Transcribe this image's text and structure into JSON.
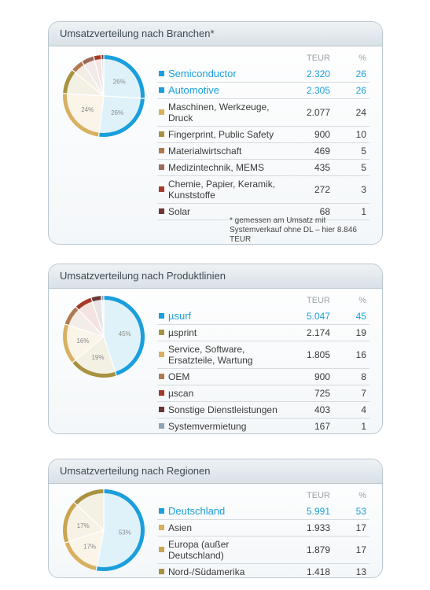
{
  "labels": {
    "col_teur": "TEUR",
    "col_pct": "%"
  },
  "chart_data": [
    {
      "type": "pie",
      "title": "Umsatzverteilung nach Branchen*",
      "note": "* gemessen am Umsatz mit Systemverkauf ohne DL – hier 8.846 TEUR",
      "slices": [
        {
          "label": "Semiconductor",
          "teur": "2.320",
          "pct": 26,
          "color": "#1b9fdc",
          "highlight": true
        },
        {
          "label": "Automotive",
          "teur": "2.305",
          "pct": 26,
          "color": "#1b9fdc",
          "highlight": true
        },
        {
          "label": "Maschinen, Werkzeuge, Druck",
          "teur": "2.077",
          "pct": 24,
          "color": "#d8b060",
          "highlight": false
        },
        {
          "label": "Fingerprint, Public Safety",
          "teur": "900",
          "pct": 10,
          "color": "#a89240",
          "highlight": false
        },
        {
          "label": "Materialwirtschaft",
          "teur": "469",
          "pct": 5,
          "color": "#b17a4e",
          "highlight": false
        },
        {
          "label": "Medizintechnik, MEMS",
          "teur": "435",
          "pct": 5,
          "color": "#9e6a5a",
          "highlight": false
        },
        {
          "label": "Chemie, Papier, Keramik, Kunststoffe",
          "teur": "272",
          "pct": 3,
          "color": "#a63a2a",
          "highlight": false
        },
        {
          "label": "Solar",
          "teur": "68",
          "pct": 1,
          "color": "#6b3636",
          "highlight": false
        }
      ],
      "pie_labels": [
        "26%",
        "26%",
        "24%"
      ]
    },
    {
      "type": "pie",
      "title": "Umsatzverteilung nach Produktlinien",
      "slices": [
        {
          "label": "µsurf",
          "teur": "5.047",
          "pct": 45,
          "color": "#1b9fdc",
          "highlight": true
        },
        {
          "label": "µsprint",
          "teur": "2.174",
          "pct": 19,
          "color": "#a89240",
          "highlight": false
        },
        {
          "label": "Service, Software, Ersatzteile, Wartung",
          "teur": "1.805",
          "pct": 16,
          "color": "#d8b060",
          "highlight": false
        },
        {
          "label": "OEM",
          "teur": "900",
          "pct": 8,
          "color": "#b17a4e",
          "highlight": false
        },
        {
          "label": "µscan",
          "teur": "725",
          "pct": 7,
          "color": "#a63a2a",
          "highlight": false
        },
        {
          "label": "Sonstige Dienstleistungen",
          "teur": "403",
          "pct": 4,
          "color": "#6b3636",
          "highlight": false
        },
        {
          "label": "Systemvermietung",
          "teur": "167",
          "pct": 1,
          "color": "#8fa3b2",
          "highlight": false
        }
      ],
      "pie_labels": [
        "45%",
        "19%",
        "16%"
      ]
    },
    {
      "type": "pie",
      "title": "Umsatzverteilung nach Regionen",
      "slices": [
        {
          "label": "Deutschland",
          "teur": "5.991",
          "pct": 53,
          "color": "#1b9fdc",
          "highlight": true
        },
        {
          "label": "Asien",
          "teur": "1.933",
          "pct": 17,
          "color": "#d8b060",
          "highlight": false
        },
        {
          "label": "Europa (außer Deutschland)",
          "teur": "1.879",
          "pct": 17,
          "color": "#c9a54e",
          "highlight": false
        },
        {
          "label": "Nord-/Südamerika",
          "teur": "1.418",
          "pct": 13,
          "color": "#a89240",
          "highlight": false
        }
      ],
      "pie_labels": [
        "53%",
        "17%",
        "17%"
      ]
    }
  ]
}
